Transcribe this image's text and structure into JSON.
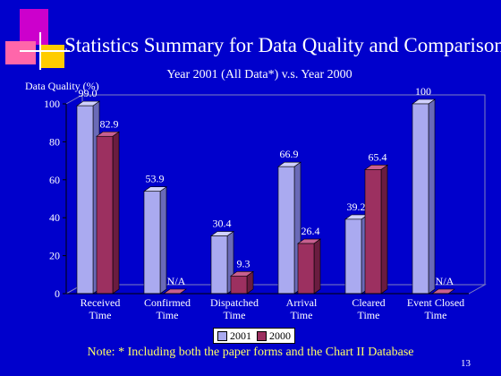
{
  "title": "Statistics Summary for Data Quality and Comparison",
  "page_number": "13",
  "note": "Note: * Including both the paper forms and the Chart II Database",
  "colors": {
    "background": "#0000cc",
    "series_2001": "#aaaaf0",
    "series_2000": "#9c3060",
    "title_text": "#ffffff",
    "note_text": "#ffff66"
  },
  "chart_data": {
    "type": "bar",
    "title": "Year 2001 (All Data*) v.s. Year 2000",
    "ylabel": "Data Quality (%)",
    "xlabel": "",
    "ylim": [
      0,
      100
    ],
    "yticks": [
      0,
      20,
      40,
      60,
      80,
      100
    ],
    "grid": false,
    "legend_position": "bottom",
    "categories": [
      [
        "Received",
        "Time"
      ],
      [
        "Confirmed",
        "Time"
      ],
      [
        "Dispatched",
        "Time"
      ],
      [
        "Arrival",
        "Time"
      ],
      [
        "Cleared",
        "Time"
      ],
      [
        "Event Closed",
        "Time"
      ]
    ],
    "series": [
      {
        "name": "2001",
        "values": [
          99.0,
          53.9,
          30.4,
          66.9,
          39.2,
          100
        ],
        "labels": [
          "99.0",
          "53.9",
          "30.4",
          "66.9",
          "39.2",
          "100"
        ]
      },
      {
        "name": "2000",
        "values": [
          82.9,
          0,
          9.3,
          26.4,
          65.4,
          0
        ],
        "labels": [
          "82.9",
          "N/A",
          "9.3",
          "26.4",
          "65.4",
          "N/A"
        ]
      }
    ]
  }
}
